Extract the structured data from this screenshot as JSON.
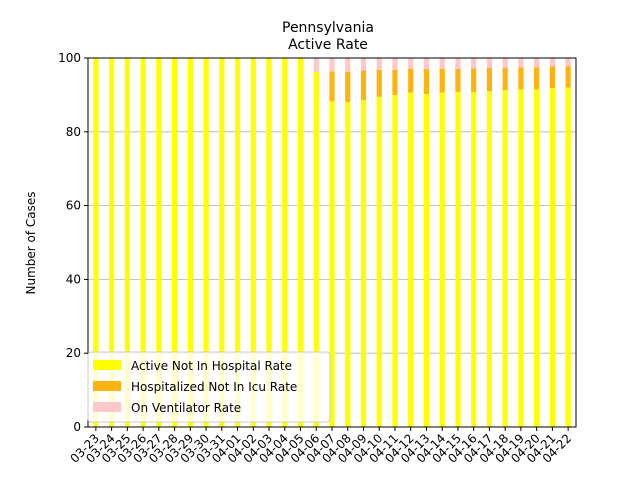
{
  "chart_data": {
    "type": "bar",
    "stacked": true,
    "title": "Pennsylvania",
    "subtitle": "Active Rate",
    "xlabel": "",
    "ylabel": "Number of Cases",
    "ylim": [
      0,
      100
    ],
    "yticks": [
      0,
      20,
      40,
      60,
      80,
      100
    ],
    "grid": "horizontal",
    "legend_position": "lower-left",
    "categories": [
      "03-23",
      "03-24",
      "03-25",
      "03-26",
      "03-27",
      "03-28",
      "03-29",
      "03-30",
      "03-31",
      "04-01",
      "04-02",
      "04-03",
      "04-04",
      "04-05",
      "04-06",
      "04-07",
      "04-08",
      "04-09",
      "04-10",
      "04-11",
      "04-12",
      "04-13",
      "04-14",
      "04-15",
      "04-16",
      "04-17",
      "04-18",
      "04-19",
      "04-20",
      "04-21",
      "04-22"
    ],
    "series": [
      {
        "name": "Active Not In Hospital Rate",
        "color": "#ffff00",
        "values": [
          100,
          100,
          100,
          100,
          100,
          100,
          100,
          100,
          100,
          100,
          100,
          100,
          100,
          100,
          96.2,
          88.3,
          88.0,
          88.6,
          89.5,
          90.0,
          90.6,
          90.2,
          90.6,
          90.8,
          90.8,
          91.0,
          91.3,
          91.5,
          91.5,
          91.8,
          92.0
        ]
      },
      {
        "name": "Hospitalized Not In Icu Rate",
        "color": "#ffb30f",
        "values": [
          0,
          0,
          0,
          0,
          0,
          0,
          0,
          0,
          0,
          0,
          0,
          0,
          0,
          0,
          0,
          8.1,
          8.3,
          8.0,
          7.3,
          6.8,
          6.5,
          6.8,
          6.5,
          6.3,
          6.4,
          6.3,
          6.1,
          6.0,
          6.0,
          5.9,
          5.8
        ]
      },
      {
        "name": "On Ventilator Rate",
        "color": "#ffc8c8",
        "values": [
          0,
          0,
          0,
          0,
          0,
          0,
          0,
          0,
          0,
          0,
          0,
          0,
          0,
          0,
          3.8,
          3.6,
          3.7,
          3.4,
          3.2,
          3.2,
          2.9,
          3.0,
          2.9,
          2.9,
          2.8,
          2.7,
          2.6,
          2.5,
          2.5,
          2.3,
          2.2
        ]
      }
    ]
  }
}
